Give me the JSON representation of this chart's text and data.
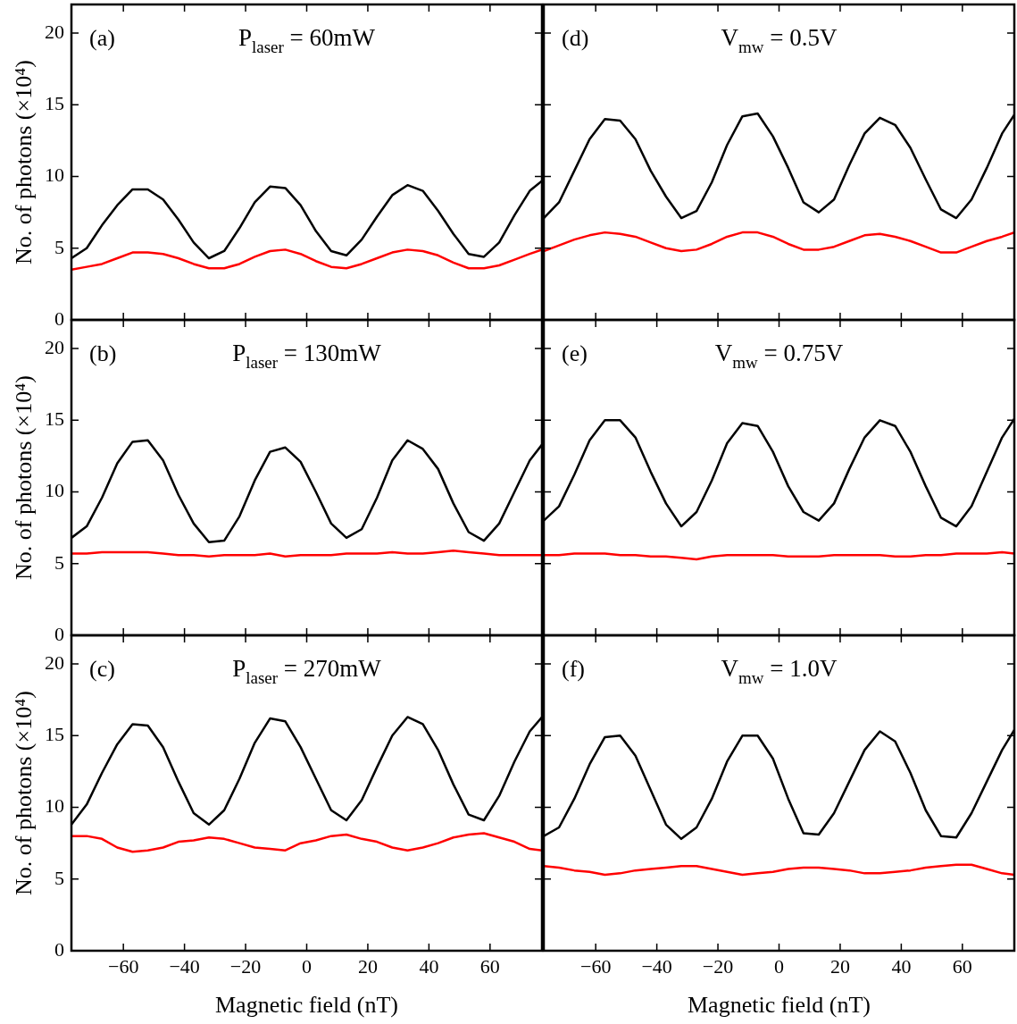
{
  "chart_data": [
    {
      "type": "line",
      "title": "P$_{laser}$ = 60mW",
      "ylabel": "No. of photons (×10⁴)",
      "annotations": [
        "(a)"
      ],
      "marker": "none",
      "tick_labels": "y",
      "xlim": [
        -77,
        77
      ],
      "xticks": [
        -60,
        -40,
        -20,
        0,
        20,
        40,
        60
      ],
      "ylim": [
        0,
        22
      ],
      "yticks": [
        0,
        5,
        10,
        15,
        20
      ],
      "x": [
        -77,
        -72,
        -67,
        -62,
        -57,
        -52,
        -47,
        -42,
        -37,
        -32,
        -27,
        -22,
        -17,
        -12,
        -7,
        -2,
        3,
        8,
        13,
        18,
        23,
        28,
        33,
        38,
        43,
        48,
        53,
        58,
        63,
        68,
        73,
        77
      ],
      "series": [
        {
          "color": "#000000",
          "values": [
            4.3,
            5.0,
            6.6,
            8.0,
            9.1,
            9.1,
            8.4,
            7.0,
            5.4,
            4.3,
            4.8,
            6.4,
            8.2,
            9.3,
            9.2,
            8.0,
            6.2,
            4.8,
            4.5,
            5.6,
            7.2,
            8.7,
            9.4,
            9.0,
            7.6,
            6.0,
            4.6,
            4.4,
            5.4,
            7.3,
            9.0,
            9.7
          ]
        },
        {
          "color": "#ff0000",
          "values": [
            3.5,
            3.7,
            3.9,
            4.3,
            4.7,
            4.7,
            4.6,
            4.3,
            3.9,
            3.6,
            3.6,
            3.9,
            4.4,
            4.8,
            4.9,
            4.6,
            4.1,
            3.7,
            3.6,
            3.9,
            4.3,
            4.7,
            4.9,
            4.8,
            4.5,
            4.0,
            3.6,
            3.6,
            3.8,
            4.2,
            4.6,
            4.9
          ]
        }
      ]
    },
    {
      "type": "line",
      "title": "P$_{laser}$ = 130mW",
      "ylabel": "No. of photons (×10⁴)",
      "annotations": [
        "(b)"
      ],
      "marker": "none",
      "tick_labels": "y",
      "xlim": [
        -77,
        77
      ],
      "xticks": [
        -60,
        -40,
        -20,
        0,
        20,
        40,
        60
      ],
      "ylim": [
        0,
        22
      ],
      "yticks": [
        0,
        5,
        10,
        15,
        20
      ],
      "x": [
        -77,
        -72,
        -67,
        -62,
        -57,
        -52,
        -47,
        -42,
        -37,
        -32,
        -27,
        -22,
        -17,
        -12,
        -7,
        -2,
        3,
        8,
        13,
        18,
        23,
        28,
        33,
        38,
        43,
        48,
        53,
        58,
        63,
        68,
        73,
        77
      ],
      "series": [
        {
          "color": "#000000",
          "values": [
            6.8,
            7.6,
            9.6,
            12.0,
            13.5,
            13.6,
            12.2,
            9.8,
            7.8,
            6.5,
            6.6,
            8.3,
            10.8,
            12.8,
            13.1,
            12.1,
            10.0,
            7.8,
            6.8,
            7.4,
            9.6,
            12.2,
            13.6,
            13.0,
            11.6,
            9.2,
            7.2,
            6.6,
            7.8,
            10.0,
            12.2,
            13.3
          ]
        },
        {
          "color": "#ff0000",
          "values": [
            5.7,
            5.7,
            5.8,
            5.8,
            5.8,
            5.8,
            5.7,
            5.6,
            5.6,
            5.5,
            5.6,
            5.6,
            5.6,
            5.7,
            5.5,
            5.6,
            5.6,
            5.6,
            5.7,
            5.7,
            5.7,
            5.8,
            5.7,
            5.7,
            5.8,
            5.9,
            5.8,
            5.7,
            5.6,
            5.6,
            5.6,
            5.6
          ]
        }
      ]
    },
    {
      "type": "line",
      "title": "P$_{laser}$ = 270mW",
      "xlabel": "Magnetic field (nT)",
      "ylabel": "No. of photons (×10⁴)",
      "annotations": [
        "(c)"
      ],
      "marker": "none",
      "xlim": [
        -77,
        77
      ],
      "xticks": [
        -60,
        -40,
        -20,
        0,
        20,
        40,
        60
      ],
      "ylim": [
        0,
        22
      ],
      "yticks": [
        0,
        5,
        10,
        15,
        20
      ],
      "x": [
        -77,
        -72,
        -67,
        -62,
        -57,
        -52,
        -47,
        -42,
        -37,
        -32,
        -27,
        -22,
        -17,
        -12,
        -7,
        -2,
        3,
        8,
        13,
        18,
        23,
        28,
        33,
        38,
        43,
        48,
        53,
        58,
        63,
        68,
        73,
        77
      ],
      "series": [
        {
          "color": "#000000",
          "values": [
            8.8,
            10.2,
            12.4,
            14.4,
            15.8,
            15.7,
            14.2,
            11.8,
            9.6,
            8.8,
            9.8,
            12.0,
            14.5,
            16.2,
            16.0,
            14.2,
            12.0,
            9.8,
            9.1,
            10.5,
            12.8,
            15.0,
            16.3,
            15.8,
            14.0,
            11.6,
            9.5,
            9.1,
            10.8,
            13.2,
            15.3,
            16.3
          ]
        },
        {
          "color": "#ff0000",
          "values": [
            8.0,
            8.0,
            7.8,
            7.2,
            6.9,
            7.0,
            7.2,
            7.6,
            7.7,
            7.9,
            7.8,
            7.5,
            7.2,
            7.1,
            7.0,
            7.5,
            7.7,
            8.0,
            8.1,
            7.8,
            7.6,
            7.2,
            7.0,
            7.2,
            7.5,
            7.9,
            8.1,
            8.2,
            7.9,
            7.6,
            7.1,
            7.0
          ]
        }
      ]
    },
    {
      "type": "line",
      "title": "V$_{mw}$ = 0.5V",
      "annotations": [
        "(d)"
      ],
      "marker": "none",
      "tick_labels": false,
      "xlim": [
        -77,
        77
      ],
      "xticks": [
        -60,
        -40,
        -20,
        0,
        20,
        40,
        60
      ],
      "ylim": [
        0,
        22
      ],
      "yticks": [
        0,
        5,
        10,
        15,
        20
      ],
      "x": [
        -77,
        -72,
        -67,
        -62,
        -57,
        -52,
        -47,
        -42,
        -37,
        -32,
        -27,
        -22,
        -17,
        -12,
        -7,
        -2,
        3,
        8,
        13,
        18,
        23,
        28,
        33,
        38,
        43,
        48,
        53,
        58,
        63,
        68,
        73,
        77
      ],
      "series": [
        {
          "color": "#000000",
          "values": [
            7.1,
            8.2,
            10.4,
            12.6,
            14.0,
            13.9,
            12.6,
            10.4,
            8.6,
            7.1,
            7.6,
            9.6,
            12.2,
            14.2,
            14.4,
            12.8,
            10.6,
            8.2,
            7.5,
            8.4,
            10.8,
            13.0,
            14.1,
            13.6,
            12.0,
            9.8,
            7.7,
            7.1,
            8.4,
            10.6,
            13.0,
            14.3
          ]
        },
        {
          "color": "#ff0000",
          "values": [
            4.8,
            5.2,
            5.6,
            5.9,
            6.1,
            6.0,
            5.8,
            5.4,
            5.0,
            4.8,
            4.9,
            5.3,
            5.8,
            6.1,
            6.1,
            5.8,
            5.3,
            4.9,
            4.9,
            5.1,
            5.5,
            5.9,
            6.0,
            5.8,
            5.5,
            5.1,
            4.7,
            4.7,
            5.1,
            5.5,
            5.8,
            6.1
          ]
        }
      ]
    },
    {
      "type": "line",
      "title": "V$_{mw}$ = 0.75V",
      "annotations": [
        "(e)"
      ],
      "marker": "none",
      "tick_labels": false,
      "xlim": [
        -77,
        77
      ],
      "xticks": [
        -60,
        -40,
        -20,
        0,
        20,
        40,
        60
      ],
      "ylim": [
        0,
        22
      ],
      "yticks": [
        0,
        5,
        10,
        15,
        20
      ],
      "x": [
        -77,
        -72,
        -67,
        -62,
        -57,
        -52,
        -47,
        -42,
        -37,
        -32,
        -27,
        -22,
        -17,
        -12,
        -7,
        -2,
        3,
        8,
        13,
        18,
        23,
        28,
        33,
        38,
        43,
        48,
        53,
        58,
        63,
        68,
        73,
        77
      ],
      "series": [
        {
          "color": "#000000",
          "values": [
            8.0,
            9.0,
            11.2,
            13.6,
            15.0,
            15.0,
            13.8,
            11.4,
            9.2,
            7.6,
            8.6,
            10.8,
            13.4,
            14.8,
            14.6,
            12.8,
            10.4,
            8.6,
            8.0,
            9.2,
            11.6,
            13.8,
            15.0,
            14.6,
            12.8,
            10.4,
            8.2,
            7.6,
            9.0,
            11.4,
            13.8,
            15.1
          ]
        },
        {
          "color": "#ff0000",
          "values": [
            5.6,
            5.6,
            5.7,
            5.7,
            5.7,
            5.6,
            5.6,
            5.5,
            5.5,
            5.4,
            5.3,
            5.5,
            5.6,
            5.6,
            5.6,
            5.6,
            5.5,
            5.5,
            5.5,
            5.6,
            5.6,
            5.6,
            5.6,
            5.5,
            5.5,
            5.6,
            5.6,
            5.7,
            5.7,
            5.7,
            5.8,
            5.7
          ]
        }
      ]
    },
    {
      "type": "line",
      "title": "V$_{mw}$ = 1.0V",
      "xlabel": "Magnetic field (nT)",
      "annotations": [
        "(f)"
      ],
      "marker": "none",
      "tick_labels": "x",
      "xlim": [
        -77,
        77
      ],
      "xticks": [
        -60,
        -40,
        -20,
        0,
        20,
        40,
        60
      ],
      "ylim": [
        0,
        22
      ],
      "yticks": [
        0,
        5,
        10,
        15,
        20
      ],
      "x": [
        -77,
        -72,
        -67,
        -62,
        -57,
        -52,
        -47,
        -42,
        -37,
        -32,
        -27,
        -22,
        -17,
        -12,
        -7,
        -2,
        3,
        8,
        13,
        18,
        23,
        28,
        33,
        38,
        43,
        48,
        53,
        58,
        63,
        68,
        73,
        77
      ],
      "series": [
        {
          "color": "#000000",
          "values": [
            8.0,
            8.6,
            10.6,
            13.0,
            14.9,
            15.0,
            13.6,
            11.2,
            8.8,
            7.8,
            8.6,
            10.6,
            13.2,
            15.0,
            15.0,
            13.4,
            10.6,
            8.2,
            8.1,
            9.6,
            11.8,
            14.0,
            15.3,
            14.6,
            12.4,
            9.8,
            8.0,
            7.9,
            9.6,
            11.8,
            14.0,
            15.4
          ]
        },
        {
          "color": "#ff0000",
          "values": [
            5.9,
            5.8,
            5.6,
            5.5,
            5.3,
            5.4,
            5.6,
            5.7,
            5.8,
            5.9,
            5.9,
            5.7,
            5.5,
            5.3,
            5.4,
            5.5,
            5.7,
            5.8,
            5.8,
            5.7,
            5.6,
            5.4,
            5.4,
            5.5,
            5.6,
            5.8,
            5.9,
            6.0,
            6.0,
            5.7,
            5.4,
            5.3
          ]
        }
      ]
    }
  ]
}
